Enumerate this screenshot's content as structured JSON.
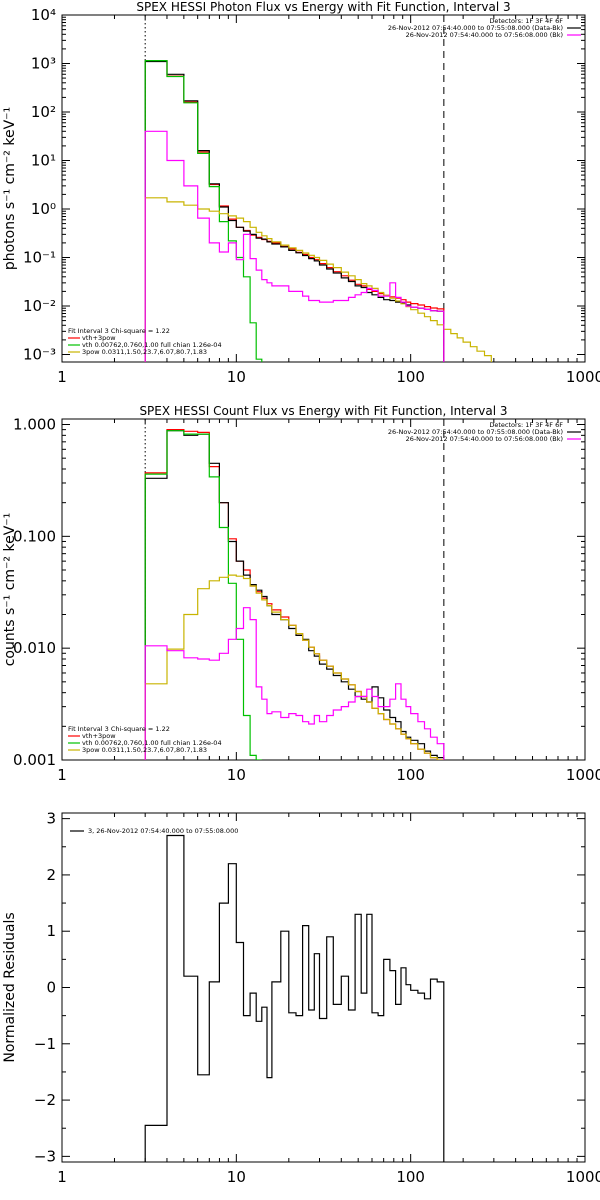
{
  "chart_data": [
    {
      "type": "line",
      "title": "SPEX HESSI Photon Flux vs Energy with Fit Function, Interval 3",
      "xlabel": "",
      "ylabel": "photons s⁻¹ cm⁻² keV⁻¹",
      "xscale": "log",
      "yscale": "log",
      "xlim": [
        1,
        1000
      ],
      "ylim": [
        0.0007,
        10000
      ],
      "xtick_labels": [
        "1",
        "10",
        "100",
        "1000"
      ],
      "ytick_labels": [
        "10⁻³",
        "10⁻²",
        "10⁻¹",
        "10⁰",
        "10¹",
        "10²",
        "10³",
        "10⁴"
      ],
      "ytick_values": [
        0.001,
        0.01,
        0.1,
        1,
        10,
        100,
        1000,
        10000
      ],
      "vlines": [
        {
          "x": 3.0,
          "style": "dotted",
          "color": "#000000"
        },
        {
          "x": 155,
          "style": "dashed",
          "color": "#000000"
        }
      ],
      "legend_top_right": [
        {
          "text": "Detectors: 1F 3F 4F 6F",
          "color": "#000000"
        },
        {
          "text": "26-Nov-2012 07:54:40.000 to 07:55:08.000 (Data-Bk)",
          "color": "#000000"
        },
        {
          "text": "26-Nov-2012 07:54:40.000 to 07:56:08.000 (Bk)",
          "color": "#ff00ff"
        }
      ],
      "legend_bottom_left": [
        {
          "text": "Fit Interval 3   Chi-square = 1.22",
          "color": "#000000"
        },
        {
          "text": "vth+3pow",
          "color": "#ff0000"
        },
        {
          "text": "vth 0.00762,0.760,1.00   full chian 1.26e-04",
          "color": "#00c000"
        },
        {
          "text": "3pow 0.0311,1.50,23.7,6.07,80.7,1.83",
          "color": "#c8b400"
        }
      ],
      "edges": [
        3.0,
        3.5,
        4.0,
        4.5,
        5.0,
        5.5,
        6.0,
        6.5,
        7.0,
        7.5,
        8.0,
        8.5,
        9.0,
        9.5,
        10.0,
        11.0,
        12.0,
        13.0,
        14.0,
        15.0,
        16.0,
        18.0,
        20.0,
        22.0,
        24.0,
        26.0,
        28.0,
        30.0,
        33.0,
        36.0,
        40.0,
        44.0,
        48.0,
        52.0,
        56.0,
        60.0,
        65.0,
        70.0,
        76.0,
        82.0,
        88.0,
        94.0,
        100.0,
        110.0,
        120.0,
        130.0,
        142.0,
        155.0,
        170.0,
        185.0,
        200.0,
        220.0,
        240.0,
        265.0,
        290.0
      ],
      "series": [
        {
          "name": "vth+3pow",
          "color": "#ff0000",
          "width": 1.2,
          "values": [
            1150,
            1150,
            550,
            550,
            160,
            160,
            15,
            15,
            3.2,
            3.2,
            1.15,
            1.15,
            0.62,
            0.62,
            0.42,
            0.36,
            0.29,
            0.26,
            0.235,
            0.215,
            0.2,
            0.17,
            0.15,
            0.128,
            0.115,
            0.1,
            0.09,
            0.075,
            0.062,
            0.051,
            0.042,
            0.034,
            0.028,
            0.026,
            0.022,
            0.02,
            0.018,
            0.0165,
            0.0155,
            0.0145,
            0.0135,
            0.012,
            0.0112,
            0.0105,
            0.0097,
            0.0091,
            0.0087
          ]
        },
        {
          "name": "",
          "color": "#000000",
          "width": 1.2,
          "values": [
            1100,
            1100,
            600,
            600,
            170,
            170,
            16,
            16,
            3.3,
            3.3,
            1.1,
            1.1,
            0.58,
            0.58,
            0.42,
            0.35,
            0.3,
            0.25,
            0.24,
            0.21,
            0.19,
            0.165,
            0.14,
            0.125,
            0.11,
            0.095,
            0.085,
            0.07,
            0.058,
            0.048,
            0.038,
            0.032,
            0.026,
            0.024,
            0.019,
            0.017,
            0.015,
            0.0135,
            0.013,
            0.012,
            0.0115,
            0.0105,
            0.0095,
            0.009,
            0.0085,
            0.008,
            0.0078
          ]
        },
        {
          "name": "vth",
          "color": "#00c000",
          "width": 1.2,
          "values": [
            1150,
            1150,
            540,
            540,
            155,
            155,
            14,
            14,
            2.9,
            2.9,
            0.55,
            0.55,
            0.22,
            0.22,
            0.1,
            0.04,
            0.0045,
            0.0008
          ]
        },
        {
          "name": "3pow",
          "color": "#c8b400",
          "width": 1.2,
          "values": [
            1.7,
            1.7,
            1.4,
            1.4,
            1.2,
            1.2,
            1.0,
            1.0,
            0.9,
            0.9,
            0.8,
            0.8,
            0.72,
            0.72,
            0.65,
            0.55,
            0.42,
            0.33,
            0.28,
            0.245,
            0.21,
            0.18,
            0.158,
            0.14,
            0.124,
            0.111,
            0.1,
            0.087,
            0.073,
            0.062,
            0.05,
            0.042,
            0.035,
            0.029,
            0.026,
            0.023,
            0.019,
            0.0165,
            0.0145,
            0.0127,
            0.0111,
            0.0097,
            0.0084,
            0.0071,
            0.006,
            0.005,
            0.0041,
            0.0033,
            0.0027,
            0.0022,
            0.0018,
            0.00145,
            0.00117,
            0.00095
          ]
        },
        {
          "name": "Bk",
          "color": "#ff00ff",
          "width": 1.2,
          "values": [
            40,
            40,
            10,
            10,
            3.0,
            3.0,
            0.65,
            0.65,
            0.2,
            0.2,
            0.13,
            0.13,
            0.2,
            0.2,
            0.09,
            0.3,
            0.095,
            0.055,
            0.035,
            0.03,
            0.026,
            0.026,
            0.02,
            0.02,
            0.016,
            0.013,
            0.013,
            0.012,
            0.012,
            0.013,
            0.013,
            0.015,
            0.017,
            0.019,
            0.023,
            0.021,
            0.016,
            0.016,
            0.03,
            0.015,
            0.012,
            0.01,
            0.0095,
            0.009,
            0.0085,
            0.008,
            0.0078
          ]
        }
      ]
    },
    {
      "type": "line",
      "title": "SPEX HESSI Count Flux vs Energy with Fit Function, Interval 3",
      "xlabel": "",
      "ylabel": "counts s⁻¹ cm⁻² keV⁻¹",
      "xscale": "log",
      "yscale": "log",
      "xlim": [
        1,
        1000
      ],
      "ylim": [
        0.001,
        1.12
      ],
      "xtick_labels": [
        "1",
        "10",
        "100",
        "1000"
      ],
      "ytick_labels": [
        "0.001",
        "0.010",
        "0.100",
        "1.000"
      ],
      "ytick_values": [
        0.001,
        0.01,
        0.1,
        1.0
      ],
      "vlines": [
        {
          "x": 3.0,
          "style": "dotted",
          "color": "#000000"
        },
        {
          "x": 155,
          "style": "dashed",
          "color": "#000000"
        }
      ],
      "legend_top_right": [
        {
          "text": "Detectors: 1F 3F 4F 6F",
          "color": "#000000"
        },
        {
          "text": "26-Nov-2012 07:54:40.000 to 07:55:08.000 (Data-Bk)",
          "color": "#000000"
        },
        {
          "text": "26-Nov-2012 07:54:40.000 to 07:56:08.000 (Bk)",
          "color": "#ff00ff"
        }
      ],
      "legend_bottom_left": [
        {
          "text": "Fit Interval 3   Chi-square = 1.22",
          "color": "#000000"
        },
        {
          "text": "vth+3pow",
          "color": "#ff0000"
        },
        {
          "text": "vth 0.00762,0.760,1.00   full chian 1.26e-04",
          "color": "#00c000"
        },
        {
          "text": "3pow 0.0311,1.50,23.7,6.07,80.7,1.83",
          "color": "#c8b400"
        }
      ],
      "edges": [
        3.0,
        3.5,
        4.0,
        4.5,
        5.0,
        5.5,
        6.0,
        6.5,
        7.0,
        7.5,
        8.0,
        8.5,
        9.0,
        9.5,
        10.0,
        11.0,
        12.0,
        13.0,
        14.0,
        15.0,
        16.0,
        18.0,
        20.0,
        22.0,
        24.0,
        26.0,
        28.0,
        30.0,
        33.0,
        36.0,
        40.0,
        44.0,
        48.0,
        52.0,
        56.0,
        60.0,
        65.0,
        70.0,
        76.0,
        82.0,
        88.0,
        94.0,
        100.0,
        110.0,
        120.0,
        130.0,
        142.0,
        155.0
      ],
      "series": [
        {
          "name": "vth+3pow",
          "color": "#ff0000",
          "width": 1.2,
          "values": [
            0.37,
            0.37,
            0.9,
            0.9,
            0.87,
            0.87,
            0.85,
            0.85,
            0.42,
            0.42,
            0.2,
            0.2,
            0.095,
            0.095,
            0.06,
            0.05,
            0.036,
            0.032,
            0.028,
            0.025,
            0.022,
            0.019,
            0.016,
            0.0135,
            0.0118,
            0.0102,
            0.0089,
            0.0078,
            0.0069,
            0.006,
            0.0053,
            0.0047,
            0.0041,
            0.0037,
            0.0033,
            0.0029,
            0.0026,
            0.0023,
            0.0021,
            0.0019,
            0.0017,
            0.00155,
            0.0014,
            0.00125,
            0.00115,
            0.00105,
            0.001
          ]
        },
        {
          "name": "",
          "color": "#000000",
          "width": 1.2,
          "values": [
            0.33,
            0.33,
            0.88,
            0.88,
            0.8,
            0.8,
            0.82,
            0.82,
            0.45,
            0.45,
            0.2,
            0.2,
            0.09,
            0.09,
            0.06,
            0.045,
            0.037,
            0.033,
            0.029,
            0.024,
            0.02,
            0.018,
            0.015,
            0.013,
            0.012,
            0.0095,
            0.0085,
            0.0072,
            0.0065,
            0.0057,
            0.005,
            0.0043,
            0.0037,
            0.0035,
            0.0033,
            0.0045,
            0.0036,
            0.0028,
            0.0024,
            0.0022,
            0.0018,
            0.0016,
            0.0015,
            0.0014,
            0.0012,
            0.0011,
            0.00105
          ]
        },
        {
          "name": "vth",
          "color": "#00c000",
          "width": 1.2,
          "values": [
            0.36,
            0.36,
            0.88,
            0.88,
            0.82,
            0.82,
            0.82,
            0.82,
            0.34,
            0.34,
            0.12,
            0.12,
            0.038,
            0.038,
            0.012,
            0.0025,
            0.0011,
            0.0009
          ]
        },
        {
          "name": "3pow",
          "color": "#c8b400",
          "width": 1.2,
          "values": [
            0.0048,
            0.0048,
            0.0098,
            0.0098,
            0.02,
            0.02,
            0.034,
            0.034,
            0.04,
            0.04,
            0.043,
            0.043,
            0.045,
            0.045,
            0.044,
            0.042,
            0.036,
            0.031,
            0.027,
            0.024,
            0.021,
            0.018,
            0.016,
            0.0135,
            0.0118,
            0.0102,
            0.0089,
            0.0078,
            0.0069,
            0.006,
            0.0053,
            0.0047,
            0.0041,
            0.0037,
            0.0033,
            0.0029,
            0.0026,
            0.0023,
            0.0021,
            0.0019,
            0.0017,
            0.00155,
            0.0014,
            0.00125,
            0.00115,
            0.00105,
            0.001
          ]
        },
        {
          "name": "Bk",
          "color": "#ff00ff",
          "width": 1.2,
          "values": [
            0.0105,
            0.0105,
            0.0095,
            0.0095,
            0.0082,
            0.0082,
            0.008,
            0.008,
            0.0078,
            0.0078,
            0.009,
            0.009,
            0.012,
            0.012,
            0.015,
            0.023,
            0.018,
            0.0045,
            0.0035,
            0.0026,
            0.0027,
            0.0024,
            0.0026,
            0.0025,
            0.0022,
            0.0021,
            0.0025,
            0.0022,
            0.0025,
            0.0028,
            0.003,
            0.0033,
            0.0037,
            0.0037,
            0.0043,
            0.0037,
            0.003,
            0.003,
            0.0035,
            0.0048,
            0.0035,
            0.003,
            0.0026,
            0.0022,
            0.0019,
            0.0016,
            0.0014
          ]
        }
      ]
    },
    {
      "type": "line",
      "title": "",
      "xlabel": "",
      "ylabel": "Normalized Residuals",
      "xscale": "log",
      "yscale": "linear",
      "xlim": [
        1,
        1000
      ],
      "ylim": [
        -3.1,
        3.1
      ],
      "xtick_labels": [
        "1",
        "10",
        "100",
        "1000"
      ],
      "ytick_labels": [
        "−3",
        "−2",
        "−1",
        "0",
        "1",
        "2",
        "3"
      ],
      "ytick_values": [
        -3,
        -2,
        -1,
        0,
        1,
        2,
        3
      ],
      "vlines": [],
      "legend_top_right": [],
      "legend_bottom_left": [],
      "legend_top_left": [
        {
          "text": "3, 26-Nov-2012 07:54:40.000 to 07:55:08.000",
          "color": "#000000"
        }
      ],
      "edges": [
        3.0,
        3.5,
        4.0,
        4.5,
        5.0,
        5.5,
        6.0,
        6.5,
        7.0,
        7.5,
        8.0,
        8.5,
        9.0,
        9.5,
        10.0,
        11.0,
        12.0,
        13.0,
        14.0,
        15.0,
        16.0,
        18.0,
        20.0,
        22.0,
        24.0,
        26.0,
        28.0,
        30.0,
        33.0,
        36.0,
        40.0,
        44.0,
        48.0,
        52.0,
        56.0,
        60.0,
        65.0,
        70.0,
        76.0,
        82.0,
        88.0,
        94.0,
        100.0,
        110.0,
        120.0,
        130.0,
        142.0,
        155.0
      ],
      "series": [
        {
          "name": "",
          "color": "#000000",
          "width": 1.2,
          "values": [
            -2.45,
            -2.45,
            2.7,
            2.7,
            0.2,
            0.2,
            -1.55,
            -1.55,
            0.1,
            0.1,
            1.5,
            1.5,
            2.2,
            2.2,
            0.8,
            -0.5,
            -0.1,
            -0.6,
            -0.35,
            -1.6,
            0.1,
            1.0,
            -0.45,
            -0.5,
            1.1,
            -0.4,
            0.6,
            -0.55,
            0.9,
            -0.3,
            0.2,
            -0.4,
            1.3,
            -0.1,
            1.3,
            -0.45,
            -0.5,
            0.5,
            0.3,
            -0.3,
            0.35,
            0.05,
            -0.05,
            -0.1,
            -0.2,
            0.15,
            0.1
          ]
        }
      ]
    }
  ]
}
